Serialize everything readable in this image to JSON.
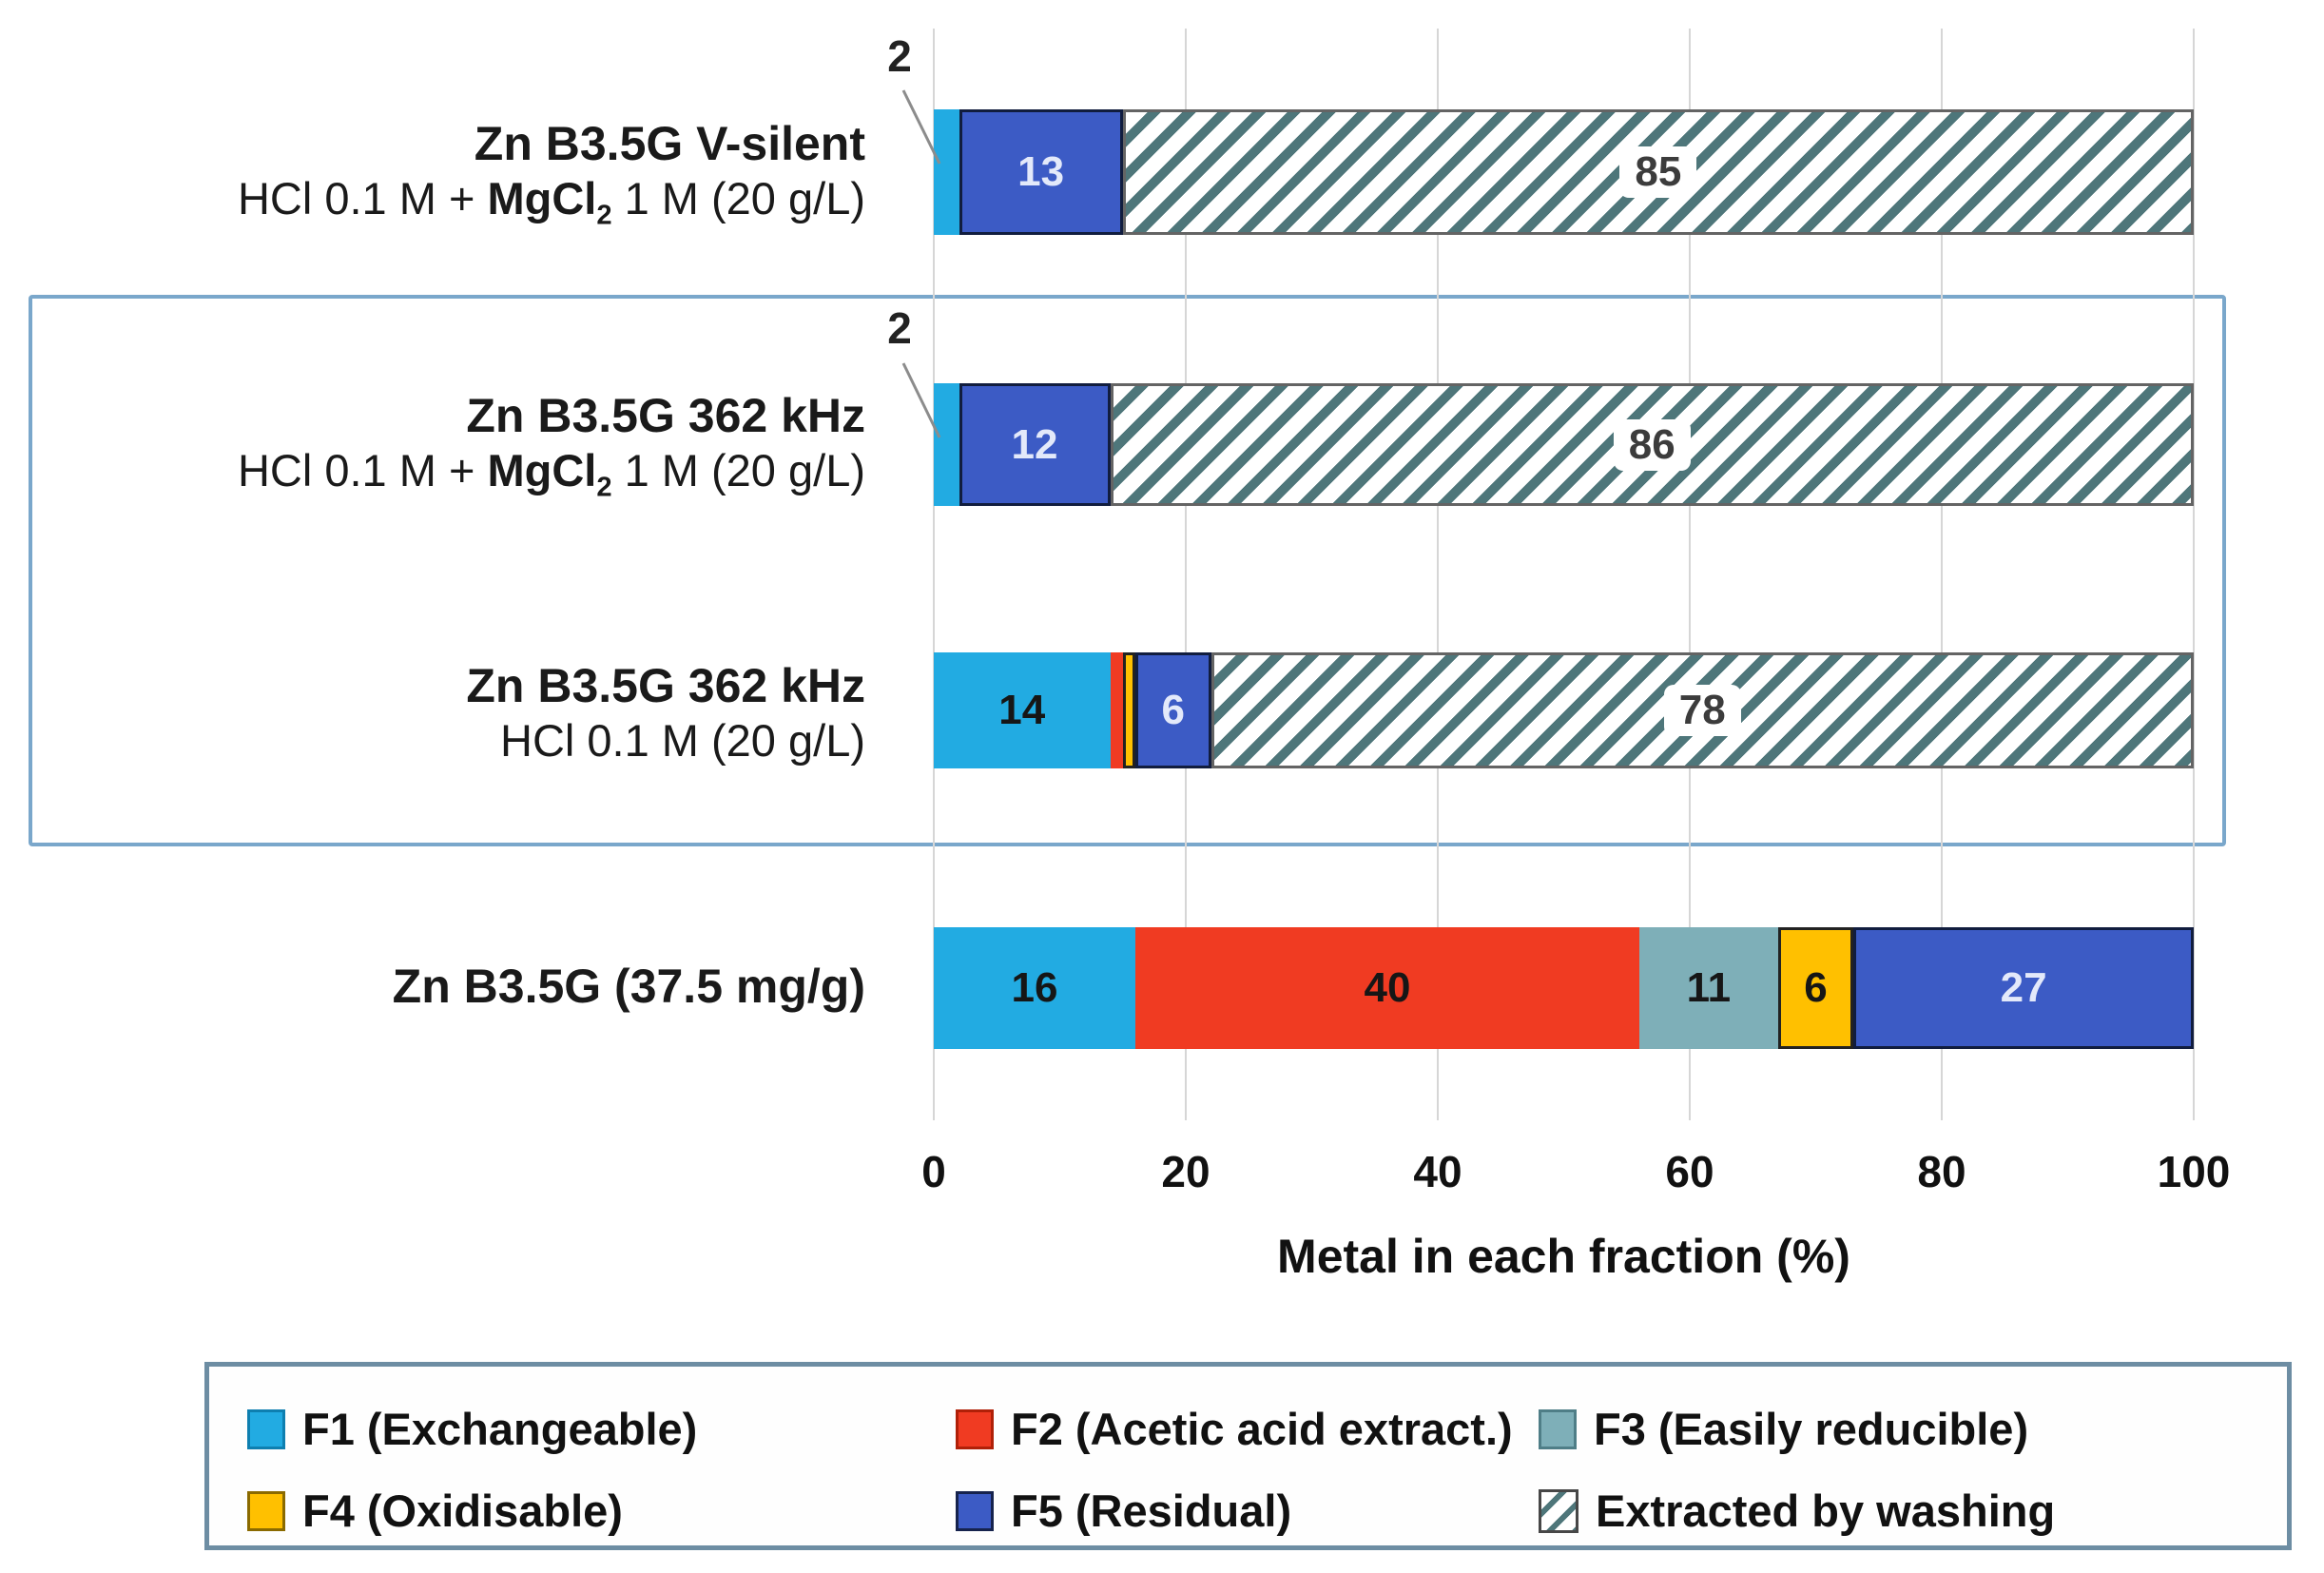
{
  "chart_data": {
    "type": "bar",
    "orientation": "horizontal",
    "stacked": true,
    "title": "",
    "xlabel": "Metal in each fraction (%)",
    "ylabel": "",
    "xlim": [
      0,
      100
    ],
    "xticks": [
      0,
      20,
      40,
      60,
      80,
      100
    ],
    "grid": true,
    "legend_position": "bottom-box",
    "legend": [
      {
        "id": "F1",
        "label": "F1 (Exchangeable)",
        "color": "#22abe2"
      },
      {
        "id": "F2",
        "label": "F2 (Acetic acid extract.)",
        "color": "#f03b22"
      },
      {
        "id": "F3",
        "label": "F3 (Easily reducible)",
        "color": "#7eafb8"
      },
      {
        "id": "F4",
        "label": "F4 (Oxidisable)",
        "color": "#ffc000"
      },
      {
        "id": "F5",
        "label": "F5 (Residual)",
        "color": "#3c5bc5"
      },
      {
        "id": "wash",
        "label": "Extracted by washing",
        "pattern": "diagonal-hatch",
        "stripe_color": "#4e767a",
        "background": "#ffffff"
      }
    ],
    "rows": [
      {
        "title": "Zn B3.5G V-silent",
        "subtitle_parts": {
          "pre": "HCl 0.1 M + ",
          "bold": "MgCl",
          "sub": "2",
          "post": " 1 M (20 g/L)"
        },
        "callout": {
          "text": "2",
          "points_to": "F1"
        },
        "segments": [
          {
            "fraction": "F1",
            "value": 2,
            "label": ""
          },
          {
            "fraction": "F5",
            "value": 13,
            "label": "13"
          },
          {
            "fraction": "wash",
            "value": 85,
            "label": "85"
          }
        ]
      },
      {
        "title": "Zn B3.5G 362 kHz",
        "subtitle_parts": {
          "pre": "HCl 0.1 M + ",
          "bold": "MgCl",
          "sub": "2",
          "post": " 1 M (20 g/L)"
        },
        "callout": {
          "text": "2",
          "points_to": "F1"
        },
        "segments": [
          {
            "fraction": "F1",
            "value": 2,
            "label": ""
          },
          {
            "fraction": "F5",
            "value": 12,
            "label": "12"
          },
          {
            "fraction": "wash",
            "value": 86,
            "label": "86"
          }
        ]
      },
      {
        "title": "Zn B3.5G 362 kHz",
        "subtitle_parts": {
          "pre": "HCl 0.1 M (20 g/L)",
          "bold": "",
          "sub": "",
          "post": ""
        },
        "segments": [
          {
            "fraction": "F1",
            "value": 14,
            "label": "14"
          },
          {
            "fraction": "F2",
            "value": 1,
            "label": ""
          },
          {
            "fraction": "F4",
            "value": 1,
            "label": ""
          },
          {
            "fraction": "F5",
            "value": 6,
            "label": "6"
          },
          {
            "fraction": "wash",
            "value": 78,
            "label": "78"
          }
        ]
      },
      {
        "title": "Zn B3.5G (37.5 mg/g)",
        "segments": [
          {
            "fraction": "F1",
            "value": 16,
            "label": "16"
          },
          {
            "fraction": "F2",
            "value": 40,
            "label": "40"
          },
          {
            "fraction": "F3",
            "value": 11,
            "label": "11"
          },
          {
            "fraction": "F4",
            "value": 6,
            "label": "6"
          },
          {
            "fraction": "F5",
            "value": 27,
            "label": "27"
          }
        ]
      }
    ],
    "highlight_box_rows": [
      1,
      2
    ],
    "colors": {
      "gridline": "#d6d6d6",
      "highlight_box_border": "#7aa7cb",
      "legend_border": "#6d8da3",
      "hatch_stripe": "#4e767a",
      "leader_line": "#8c8c8c"
    }
  }
}
